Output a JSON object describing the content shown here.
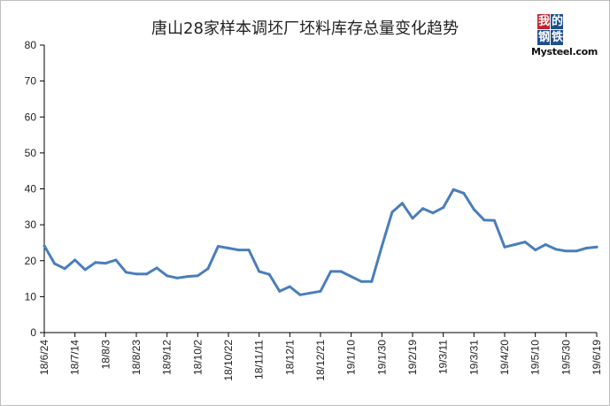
{
  "chart_data": {
    "type": "line",
    "title": "唐山28家样本调坯厂坯料库存总量变化趋势",
    "xlabel": "",
    "ylabel": "",
    "ylim": [
      0,
      80
    ],
    "y_ticks": [
      "0",
      "10",
      "20",
      "30",
      "40",
      "50",
      "60",
      "70",
      "80"
    ],
    "x_tick_labels": [
      "18/6/24",
      "18/7/14",
      "18/8/3",
      "18/8/23",
      "18/9/12",
      "18/10/2",
      "18/10/22",
      "18/11/11",
      "18/12/1",
      "18/12/21",
      "19/1/10",
      "19/1/30",
      "19/2/19",
      "19/3/11",
      "19/3/31",
      "19/4/20",
      "19/5/10",
      "19/5/30",
      "19/6/19"
    ],
    "grid": false,
    "legend": "none",
    "line_color": "#4a7ebb",
    "series": [
      {
        "values": [
          24.2,
          19.2,
          17.8,
          20.2,
          17.5,
          19.5,
          19.3,
          20.2,
          16.8,
          16.3,
          16.3,
          18.0,
          15.8,
          15.2,
          15.6,
          15.8,
          17.8,
          24.0,
          23.5,
          23.0,
          23.0,
          17.0,
          16.2,
          11.5,
          12.8,
          10.5,
          11.0,
          11.5,
          17.0,
          17.0,
          15.6,
          14.2,
          14.2,
          24.0,
          33.5,
          36.0,
          31.8,
          34.5,
          33.3,
          34.8,
          39.8,
          38.8,
          34.3,
          31.3,
          31.2,
          23.8,
          24.5,
          25.2,
          23.0,
          24.5,
          23.2,
          22.7,
          22.7,
          23.5,
          23.8
        ]
      }
    ],
    "logo": {
      "seal": [
        "我",
        "的",
        "钢",
        "铁"
      ],
      "brand": "Mysteel.com"
    }
  }
}
